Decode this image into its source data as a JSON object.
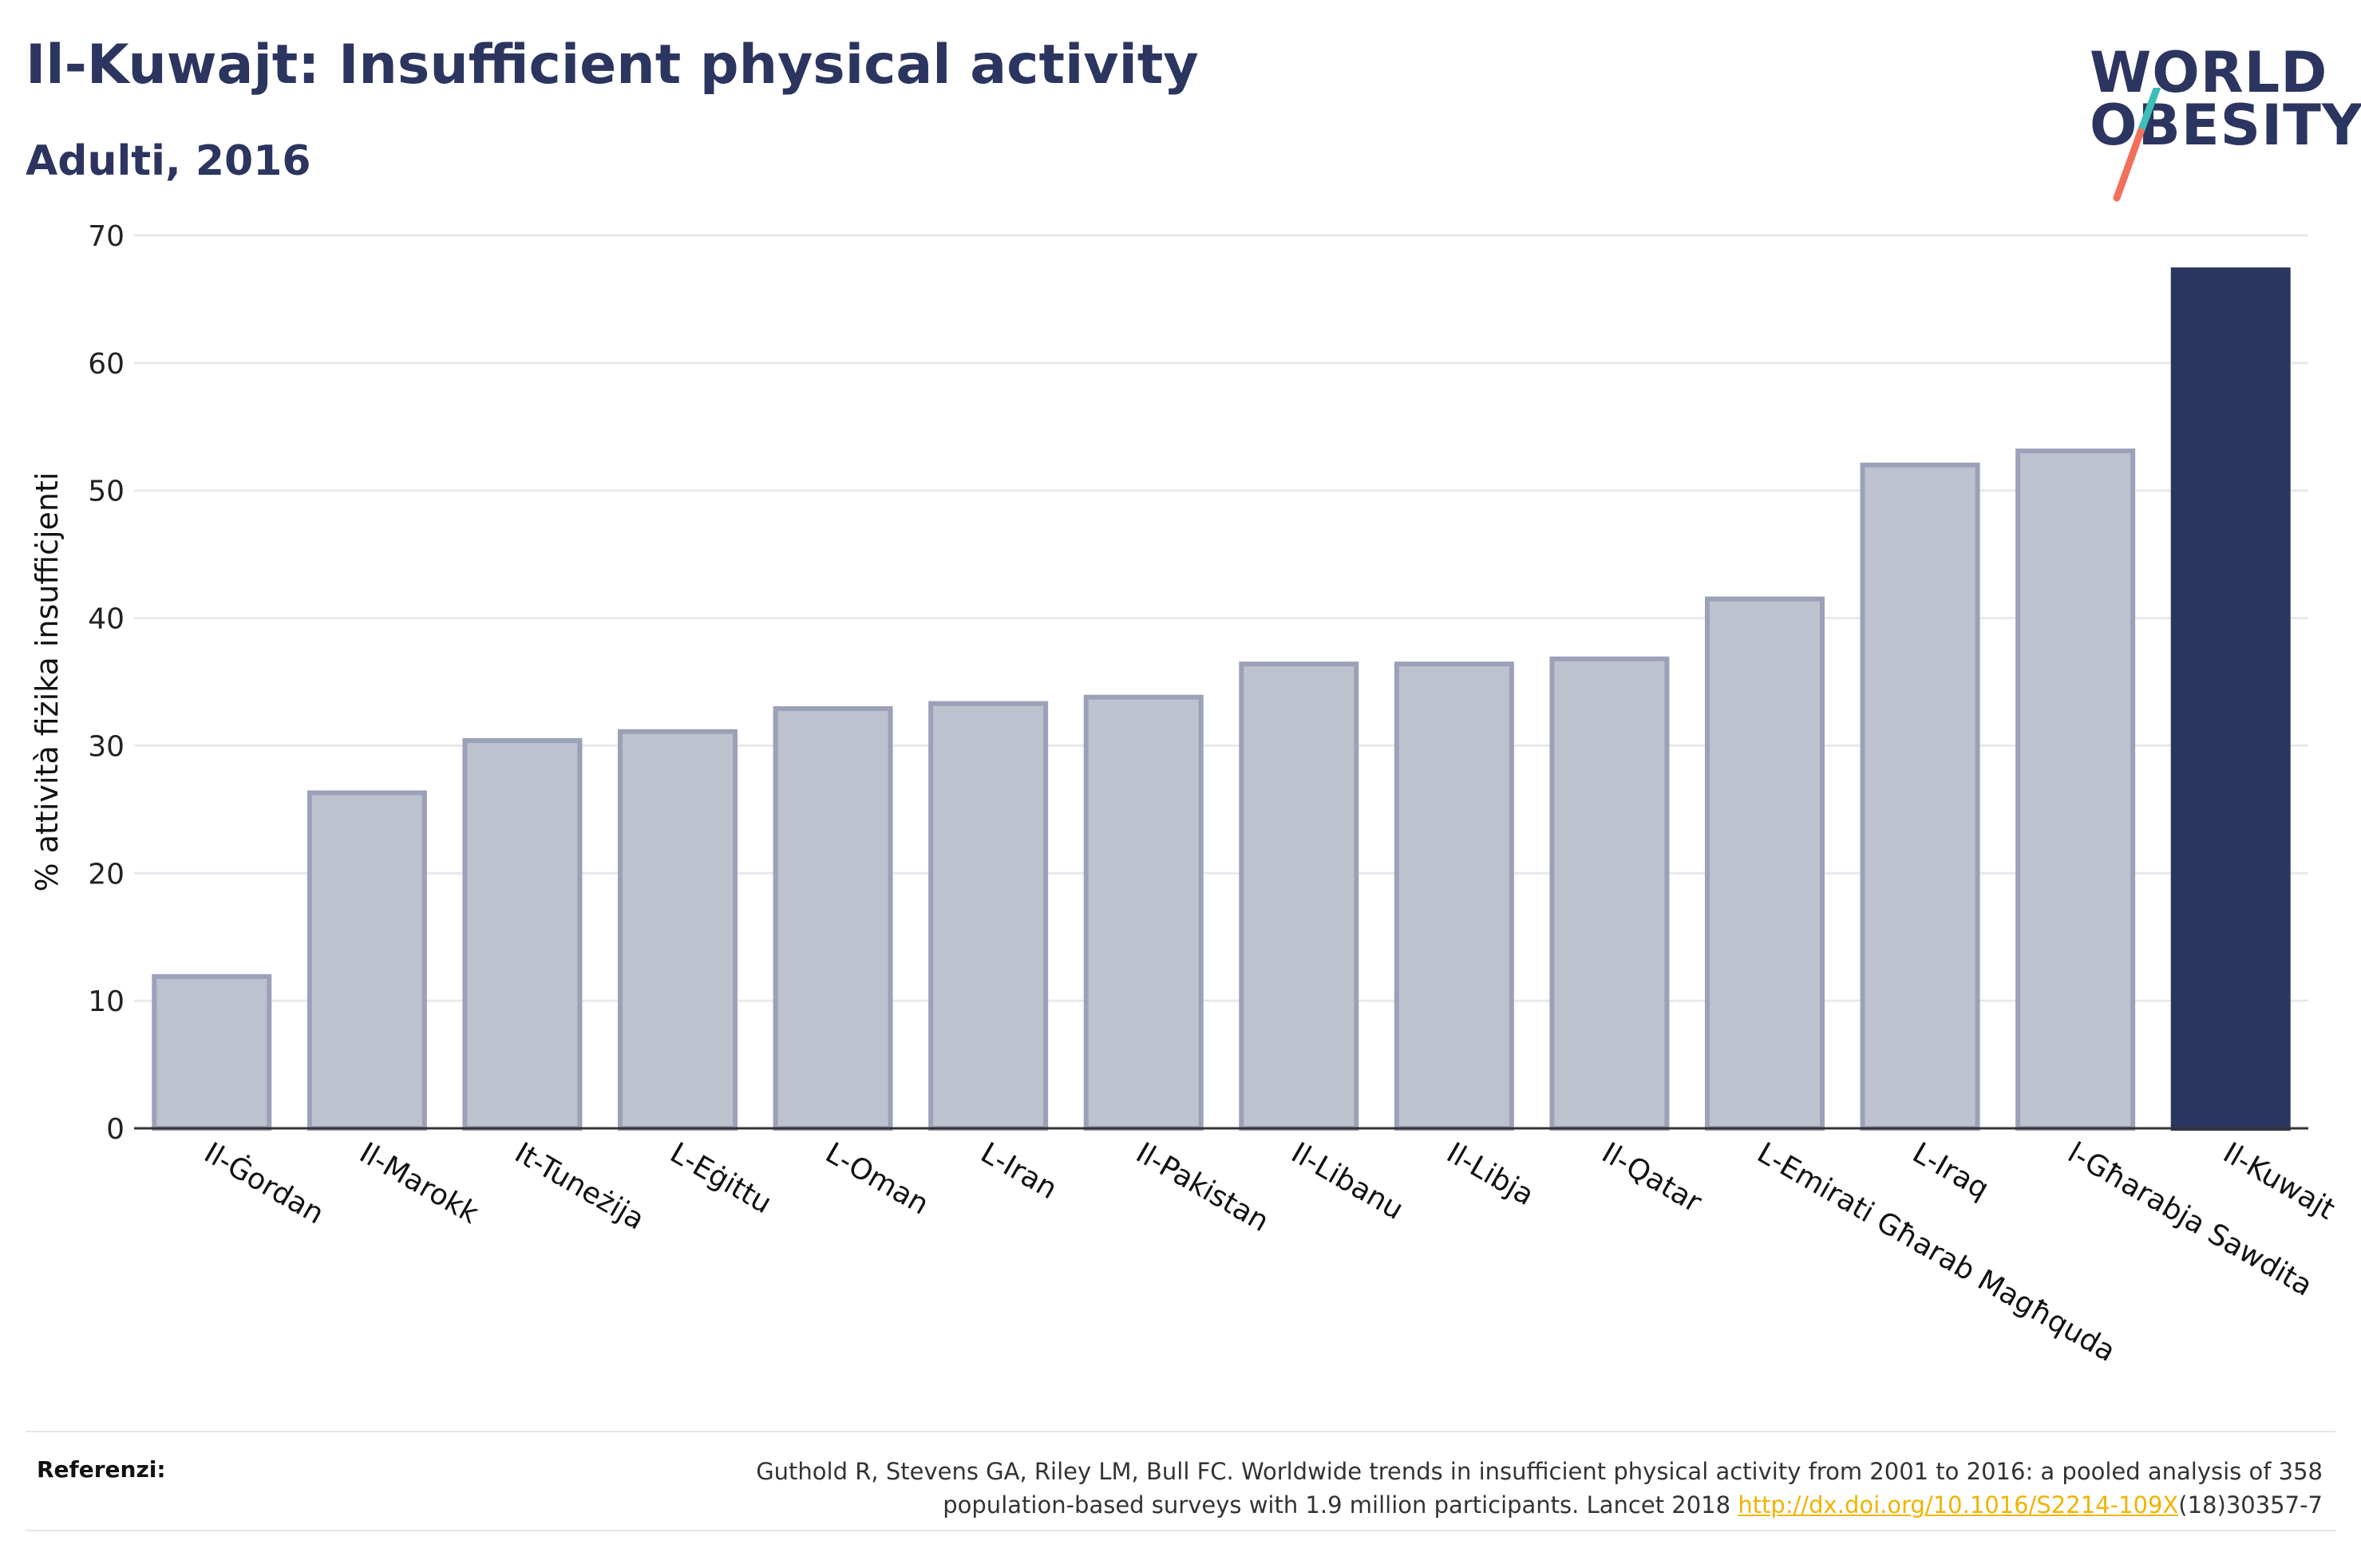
{
  "header": {
    "title": "Il-Kuwajt: Insufficient physical activity",
    "subtitle": "Adulti, 2016"
  },
  "logo": {
    "line1": "WORLD",
    "line2": "OBESITY",
    "colors": {
      "text": "#2b355f",
      "slash_top": "#3dbfb7",
      "slash_bottom": "#f2705a"
    }
  },
  "colors": {
    "bar_default_fill": "#bec2ce",
    "bar_default_stroke": "#9aa1b8",
    "bar_highlight_fill": "#2b365f",
    "gridline": "#e8e8ee",
    "axis": "#333333"
  },
  "chart_data": {
    "type": "bar",
    "title": "Il-Kuwajt: Insufficient physical activity",
    "subtitle": "Adulti, 2016",
    "xlabel": "",
    "ylabel": "% attività fiżika insuffiċjenti",
    "ylim": [
      0,
      70
    ],
    "yticks": [
      0,
      10,
      20,
      30,
      40,
      50,
      60,
      70
    ],
    "grid": true,
    "categories": [
      "Il-Ġordan",
      "Il-Marokk",
      "It-Tuneżija",
      "L-Eġittu",
      "L-Oman",
      "L-Iran",
      "Il-Pakistan",
      "Il-Libanu",
      "Il-Libja",
      "Il-Qatar",
      "L-Emirati Għarab Magħquda",
      "L-Iraq",
      "l-Għarabja Sawdita",
      "Il-Kuwajt"
    ],
    "values": [
      11.9,
      26.3,
      30.4,
      31.1,
      32.9,
      33.3,
      33.8,
      36.4,
      36.4,
      36.8,
      41.5,
      52.0,
      53.1,
      67.3
    ],
    "highlight": "Il-Kuwajt"
  },
  "references": {
    "label": "Referenzi:",
    "line1": "Guthold R, Stevens GA, Riley LM, Bull FC. Worldwide trends in insufficient physical activity from 2001 to 2016: a pooled analysis of 358",
    "line2_prefix": "population-based surveys with 1.9 million participants. Lancet 2018 ",
    "link_text": "http://dx.doi.org/10.1016/S2214-109X",
    "line2_suffix": "(18)30357-7"
  }
}
